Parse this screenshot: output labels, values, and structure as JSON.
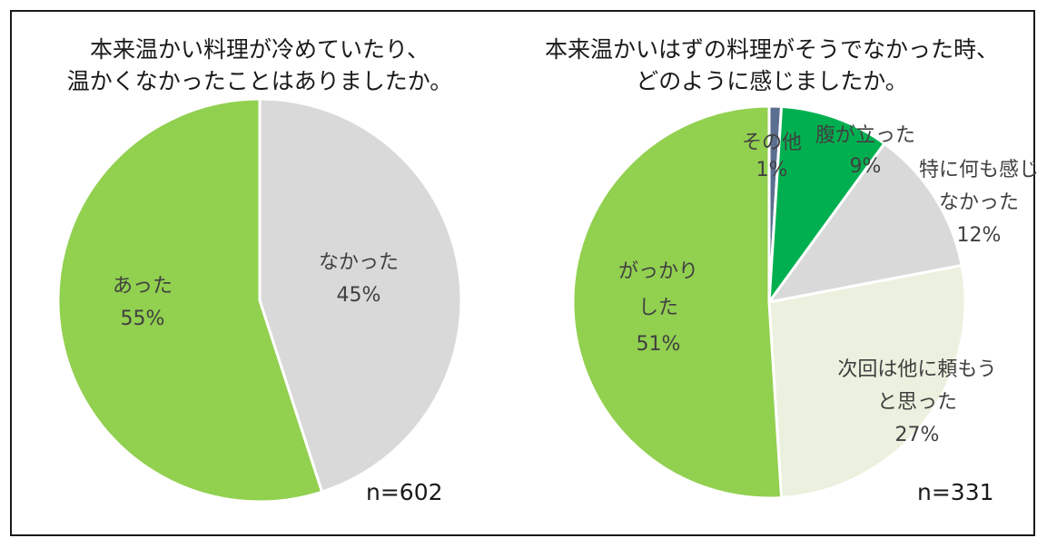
{
  "chart_data": [
    {
      "type": "pie",
      "title_lines": [
        "本来温かい料理が冷めていたり、",
        "温かくなかったことはありましたか。"
      ],
      "sample_size": "n=602",
      "slices": [
        {
          "label_lines": [
            "なかった"
          ],
          "percent_label": "45%",
          "value": 45,
          "color": "#d9d9d9"
        },
        {
          "label_lines": [
            "あった"
          ],
          "percent_label": "55%",
          "value": 55,
          "color": "#92d050"
        }
      ]
    },
    {
      "type": "pie",
      "title_lines": [
        "本来温かいはずの料理がそうでなかった時、",
        "どのように感じましたか。"
      ],
      "sample_size": "n=331",
      "slices": [
        {
          "label_lines": [
            "その他"
          ],
          "percent_label": "1%",
          "value": 1,
          "color": "#5b7090"
        },
        {
          "label_lines": [
            "腹が立った"
          ],
          "percent_label": "9%",
          "value": 9,
          "color": "#00b050"
        },
        {
          "label_lines": [
            "特に何も感じ",
            "なかった"
          ],
          "percent_label": "12%",
          "value": 12,
          "color": "#d9d9d9"
        },
        {
          "label_lines": [
            "次回は他に頼もう",
            "と思った"
          ],
          "percent_label": "27%",
          "value": 27,
          "color": "#ebf1de"
        },
        {
          "label_lines": [
            "がっかり",
            "した"
          ],
          "percent_label": "51%",
          "value": 51,
          "color": "#92d050"
        }
      ]
    }
  ]
}
